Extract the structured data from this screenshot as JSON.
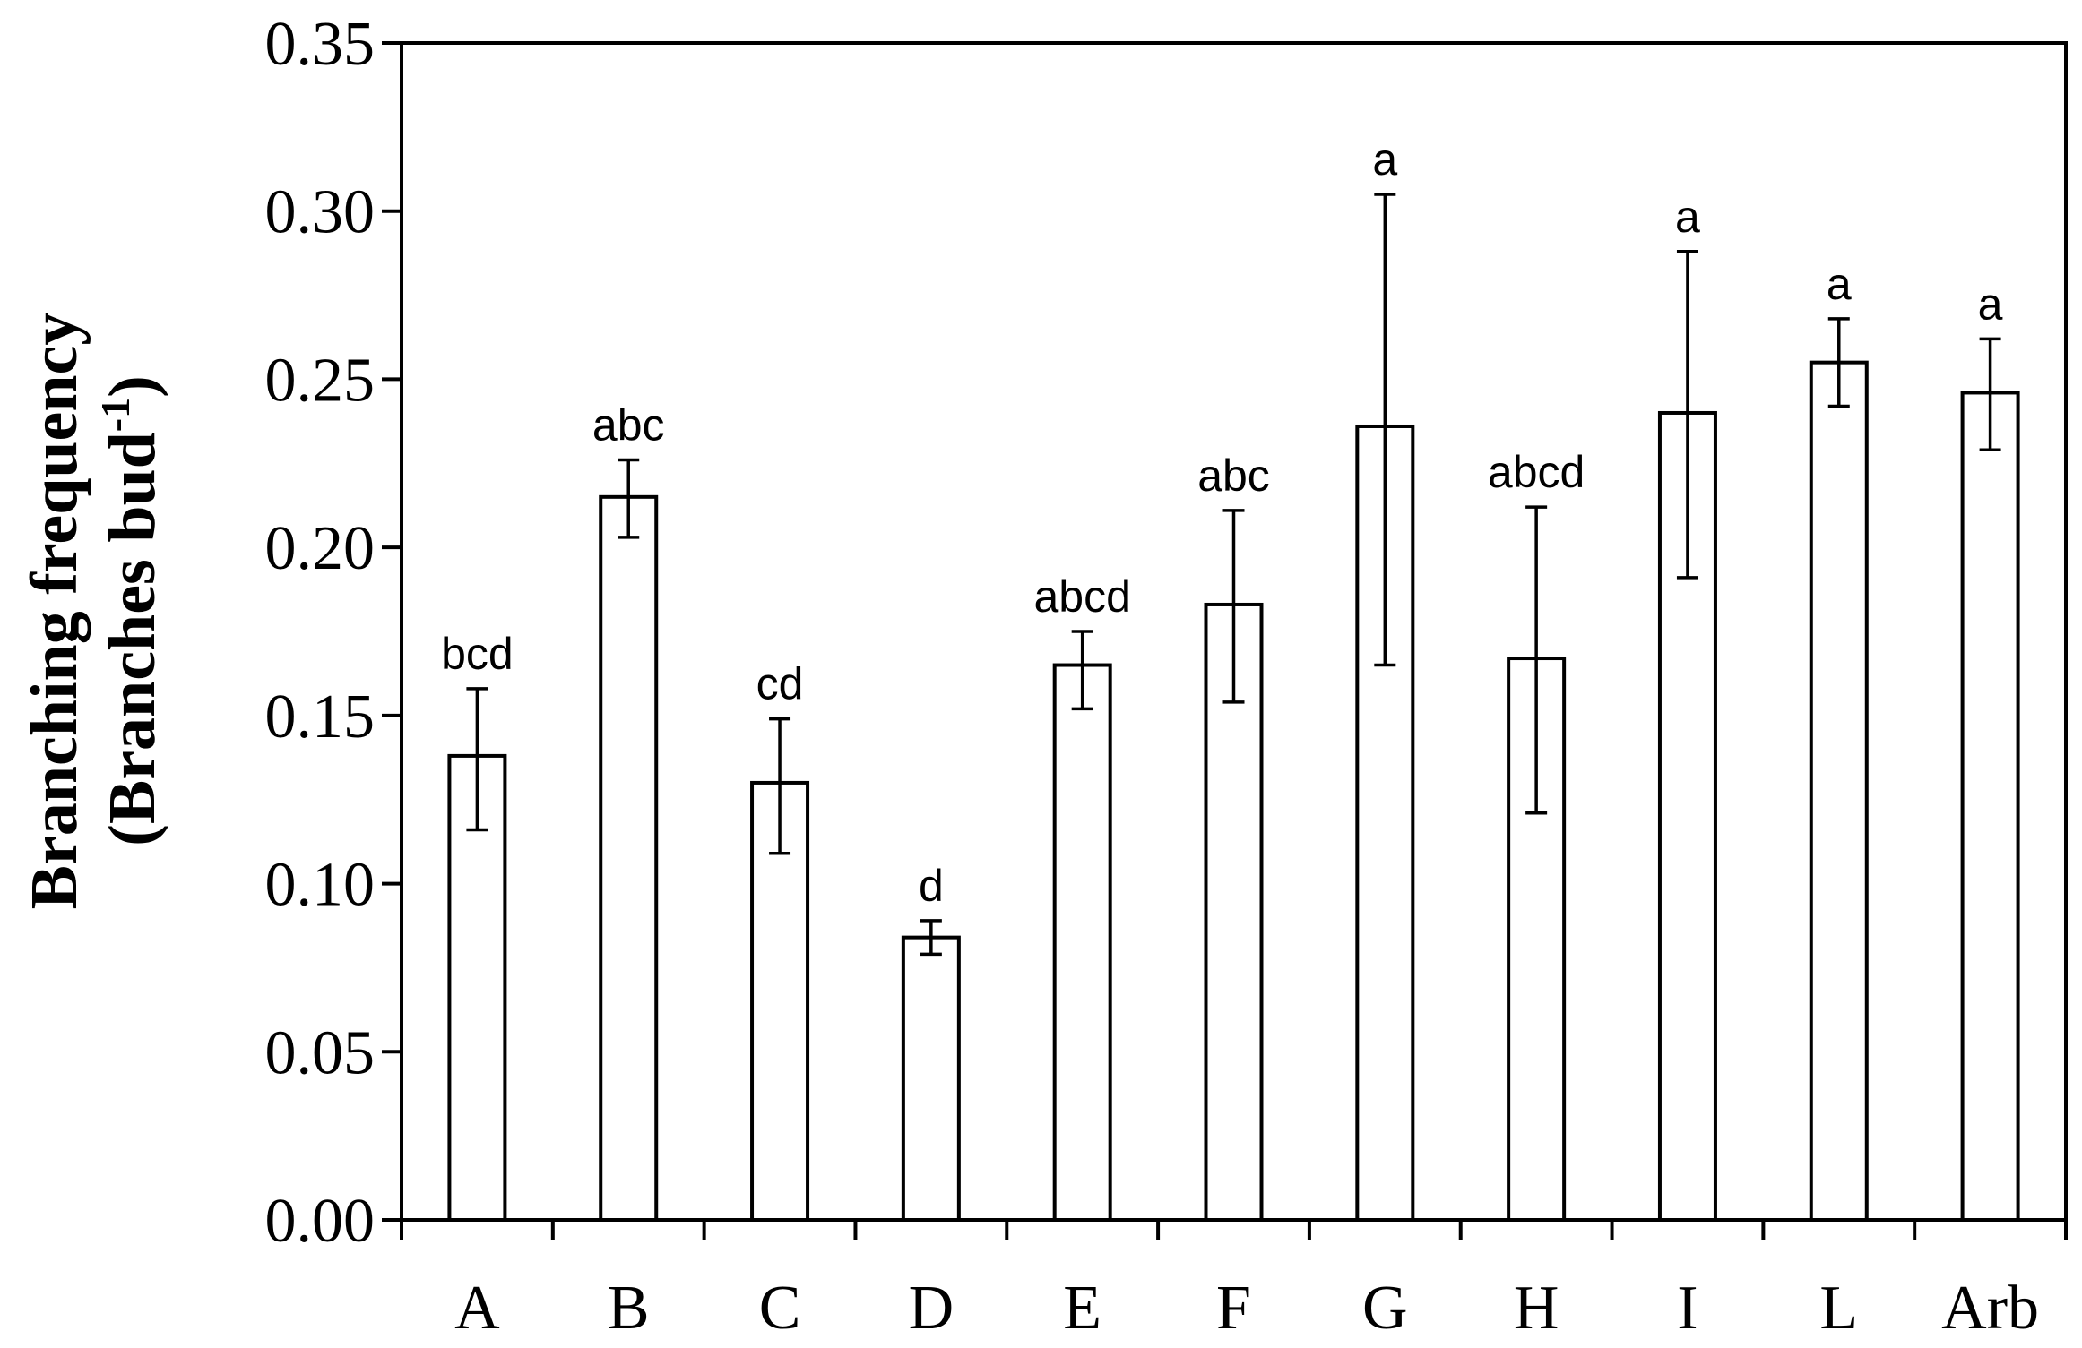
{
  "chart_data": {
    "type": "bar",
    "ylabel_line1": "Branching frequency",
    "ylabel_line2_main": "(Branches bud",
    "ylabel_line2_sup": "-1",
    "ylabel_line2_end": ")",
    "xlabel": "",
    "ylim": [
      0,
      0.35
    ],
    "yticks": [
      "0.00",
      "0.05",
      "0.10",
      "0.15",
      "0.20",
      "0.25",
      "0.30",
      "0.35"
    ],
    "categories": [
      "A",
      "B",
      "C",
      "D",
      "E",
      "F",
      "G",
      "H",
      "I",
      "L",
      "Arb"
    ],
    "values": [
      0.138,
      0.215,
      0.13,
      0.084,
      0.165,
      0.183,
      0.236,
      0.167,
      0.24,
      0.255,
      0.246
    ],
    "err_low": [
      0.116,
      0.203,
      0.109,
      0.079,
      0.152,
      0.154,
      0.165,
      0.121,
      0.191,
      0.242,
      0.229
    ],
    "err_high": [
      0.158,
      0.226,
      0.149,
      0.089,
      0.175,
      0.211,
      0.305,
      0.212,
      0.288,
      0.268,
      0.262
    ],
    "significance": [
      "bcd",
      "abc",
      "cd",
      "d",
      "abcd",
      "abc",
      "a",
      "abcd",
      "a",
      "a",
      "a"
    ],
    "bar_fill": "#ffffff",
    "line_color": "#000000",
    "grid": false
  }
}
